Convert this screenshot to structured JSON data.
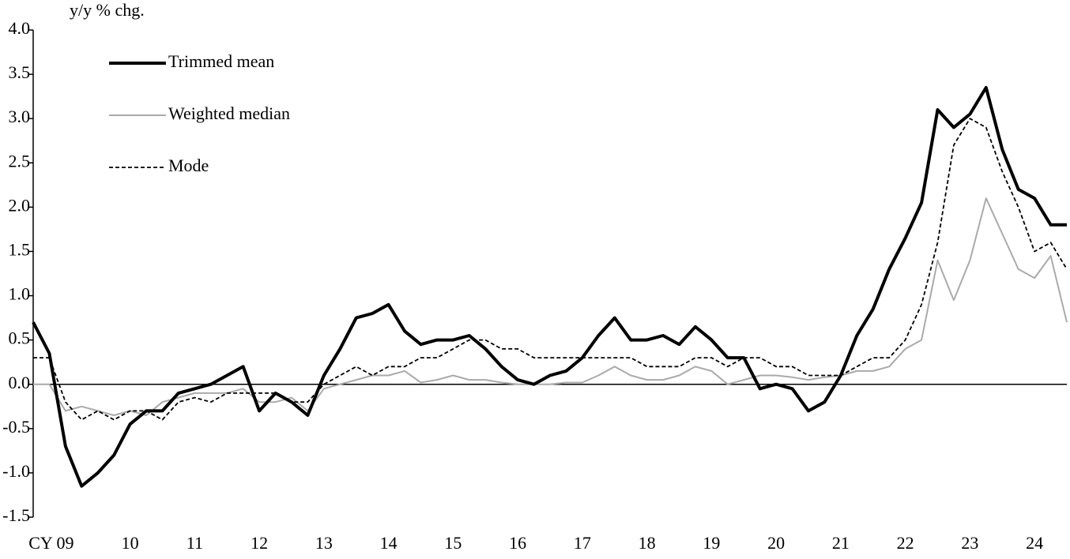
{
  "chart_data": {
    "type": "line",
    "y_axis_label": "y/y % chg.",
    "x": [
      2009,
      2009.25,
      2009.5,
      2009.75,
      2010,
      2010.25,
      2010.5,
      2010.75,
      2011,
      2011.25,
      2011.5,
      2011.75,
      2012,
      2012.25,
      2012.5,
      2012.75,
      2013,
      2013.25,
      2013.5,
      2013.75,
      2014,
      2014.25,
      2014.5,
      2014.75,
      2015,
      2015.25,
      2015.5,
      2015.75,
      2016,
      2016.25,
      2016.5,
      2016.75,
      2017,
      2017.25,
      2017.5,
      2017.75,
      2018,
      2018.25,
      2018.5,
      2018.75,
      2019,
      2019.25,
      2019.5,
      2019.75,
      2020,
      2020.25,
      2020.5,
      2020.75,
      2021,
      2021.25,
      2021.5,
      2021.75,
      2022,
      2022.25,
      2022.5,
      2022.75,
      2023,
      2023.25,
      2023.5,
      2023.75,
      2024,
      2024.25,
      2024.5,
      2024.75,
      2025
    ],
    "series": [
      {
        "name": "Trimmed mean",
        "color": "#000000",
        "values": [
          0.7,
          0.35,
          -0.7,
          -1.15,
          -1.0,
          -0.8,
          -0.45,
          -0.3,
          -0.3,
          -0.1,
          -0.05,
          0.0,
          0.1,
          0.2,
          -0.3,
          -0.1,
          -0.2,
          -0.35,
          0.1,
          0.4,
          0.75,
          0.8,
          0.9,
          0.6,
          0.45,
          0.5,
          0.5,
          0.55,
          0.4,
          0.2,
          0.05,
          0.0,
          0.1,
          0.15,
          0.3,
          0.55,
          0.75,
          0.5,
          0.5,
          0.55,
          0.45,
          0.65,
          0.5,
          0.3,
          0.3,
          -0.05,
          0.0,
          -0.05,
          -0.3,
          -0.2,
          0.1,
          0.55,
          0.85,
          1.3,
          1.65,
          2.05,
          3.1,
          2.9,
          3.05,
          3.35,
          2.65,
          2.2,
          2.1,
          1.8,
          1.8
        ]
      },
      {
        "name": "Weighted median",
        "color": "#aaaaaa",
        "values": [
          0.0,
          0.0,
          -0.3,
          -0.25,
          -0.3,
          -0.35,
          -0.3,
          -0.35,
          -0.2,
          -0.15,
          -0.1,
          -0.1,
          -0.1,
          -0.05,
          -0.2,
          -0.2,
          -0.15,
          -0.3,
          -0.05,
          0.0,
          0.05,
          0.1,
          0.1,
          0.15,
          0.02,
          0.05,
          0.1,
          0.05,
          0.05,
          0.02,
          0.0,
          0.0,
          0.0,
          0.02,
          0.02,
          0.1,
          0.2,
          0.1,
          0.05,
          0.05,
          0.1,
          0.2,
          0.15,
          0.0,
          0.05,
          0.1,
          0.1,
          0.08,
          0.05,
          0.08,
          0.1,
          0.15,
          0.15,
          0.2,
          0.4,
          0.5,
          1.4,
          0.95,
          1.4,
          2.1,
          1.7,
          1.3,
          1.2,
          1.45,
          0.7
        ]
      },
      {
        "name": "Mode",
        "color": "#000000",
        "values": [
          0.3,
          0.3,
          -0.2,
          -0.4,
          -0.3,
          -0.4,
          -0.3,
          -0.3,
          -0.4,
          -0.2,
          -0.15,
          -0.2,
          -0.1,
          -0.1,
          -0.1,
          -0.1,
          -0.2,
          -0.2,
          0.0,
          0.1,
          0.2,
          0.1,
          0.2,
          0.2,
          0.3,
          0.3,
          0.4,
          0.5,
          0.5,
          0.4,
          0.4,
          0.3,
          0.3,
          0.3,
          0.3,
          0.3,
          0.3,
          0.3,
          0.2,
          0.2,
          0.2,
          0.3,
          0.3,
          0.2,
          0.3,
          0.3,
          0.2,
          0.2,
          0.1,
          0.1,
          0.1,
          0.2,
          0.3,
          0.3,
          0.5,
          0.9,
          1.6,
          2.7,
          3.0,
          2.9,
          2.4,
          2.0,
          1.5,
          1.6,
          1.3
        ]
      }
    ],
    "xlim": [
      2009,
      2025
    ],
    "xticks": [
      {
        "value": 2009.5,
        "label": "CY 09"
      },
      {
        "value": 2010.5,
        "label": "10"
      },
      {
        "value": 2011.5,
        "label": "11"
      },
      {
        "value": 2012.5,
        "label": "12"
      },
      {
        "value": 2013.5,
        "label": "13"
      },
      {
        "value": 2014.5,
        "label": "14"
      },
      {
        "value": 2015.5,
        "label": "15"
      },
      {
        "value": 2016.5,
        "label": "16"
      },
      {
        "value": 2017.5,
        "label": "17"
      },
      {
        "value": 2018.5,
        "label": "18"
      },
      {
        "value": 2019.5,
        "label": "19"
      },
      {
        "value": 2020.5,
        "label": "20"
      },
      {
        "value": 2021.5,
        "label": "21"
      },
      {
        "value": 2022.5,
        "label": "22"
      },
      {
        "value": 2023.5,
        "label": "23"
      },
      {
        "value": 2024.5,
        "label": "24"
      }
    ],
    "ylim": [
      -1.5,
      4.0
    ],
    "yticks": [
      {
        "value": -1.5,
        "label": "-1.5"
      },
      {
        "value": -1.0,
        "label": "-1.0"
      },
      {
        "value": -0.5,
        "label": "-0.5"
      },
      {
        "value": 0,
        "label": "0.0"
      },
      {
        "value": 0.5,
        "label": "0.5"
      },
      {
        "value": 1.0,
        "label": "1.0"
      },
      {
        "value": 1.5,
        "label": "1.5"
      },
      {
        "value": 2.0,
        "label": "2.0"
      },
      {
        "value": 2.5,
        "label": "2.5"
      },
      {
        "value": 3.0,
        "label": "3.0"
      },
      {
        "value": 3.5,
        "label": "3.5"
      },
      {
        "value": 4.0,
        "label": "4.0"
      }
    ],
    "grid": false,
    "legend": "upper left"
  }
}
